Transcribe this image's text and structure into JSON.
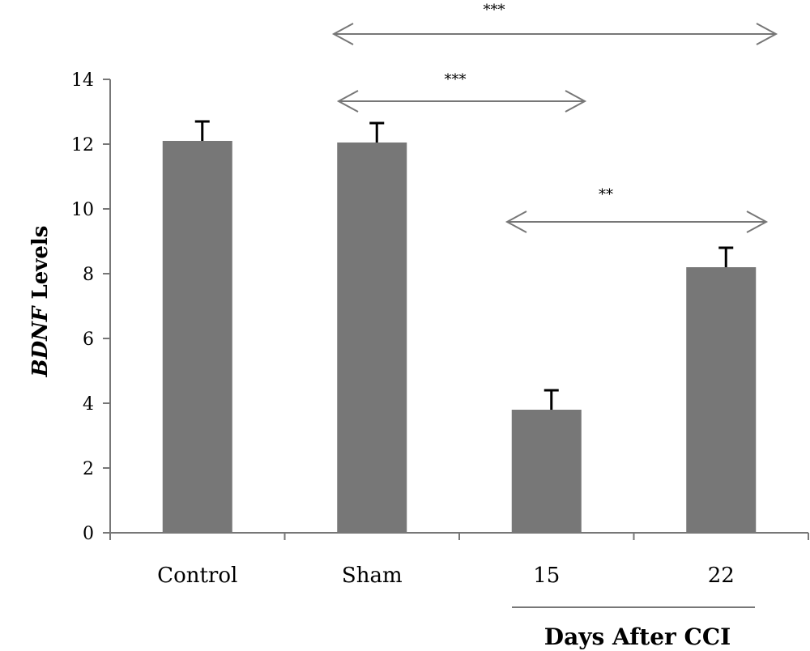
{
  "chart_data": {
    "type": "bar",
    "categories": [
      "Control",
      "Sham",
      "15",
      "22"
    ],
    "values": [
      12.1,
      12.05,
      3.8,
      8.2
    ],
    "error_bars": [
      0.6,
      0.6,
      0.6,
      0.6
    ],
    "ylabel": {
      "italic": "BDNF",
      "rest": " Levels"
    },
    "xlabel": "",
    "group_label": "Days After CCI",
    "ylim": [
      0,
      14
    ],
    "yticks": [
      0,
      2,
      4,
      6,
      8,
      10,
      12,
      14
    ],
    "grid": false,
    "bar_color": "#777777",
    "annotations": [
      {
        "label": "***",
        "from": "Sham",
        "to": "22"
      },
      {
        "label": "***",
        "from": "Sham",
        "to": "15"
      },
      {
        "label": "**",
        "from": "15",
        "to": "22"
      }
    ]
  }
}
